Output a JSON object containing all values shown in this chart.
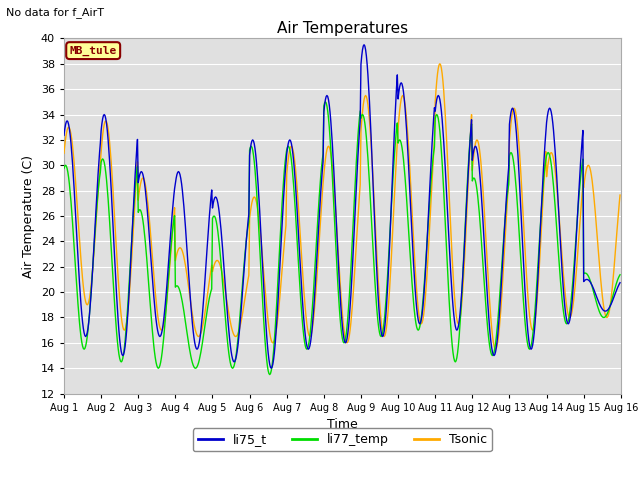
{
  "title": "Air Temperatures",
  "top_left_text": "No data for f_AirT",
  "xlabel": "Time",
  "ylabel": "Air Temperature (C)",
  "ylim": [
    12,
    40
  ],
  "yticks": [
    12,
    14,
    16,
    18,
    20,
    22,
    24,
    26,
    28,
    30,
    32,
    34,
    36,
    38,
    40
  ],
  "xtick_labels": [
    "Aug 1",
    "Aug 2",
    "Aug 3",
    "Aug 4",
    "Aug 5",
    "Aug 6",
    "Aug 7",
    "Aug 8",
    "Aug 9",
    "Aug 10",
    "Aug 11",
    "Aug 12",
    "Aug 13",
    "Aug 14",
    "Aug 15",
    "Aug 16"
  ],
  "line_colors": {
    "li75_t": "#0000cc",
    "li77_temp": "#00dd00",
    "Tsonic": "#ffaa00"
  },
  "line_widths": {
    "li75_t": 1.0,
    "li77_temp": 1.0,
    "Tsonic": 1.0
  },
  "background_color": "#e0e0e0",
  "mb_tule_label": "MB_tule",
  "mb_tule_bg": "#ffff99",
  "mb_tule_border": "#880000",
  "n_days": 15,
  "pts_per_day": 48,
  "daily_mins_blue": [
    16.5,
    15.0,
    16.5,
    15.5,
    14.5,
    14.0,
    15.5,
    16.0,
    16.5,
    17.5,
    17.0,
    15.0,
    15.5,
    17.5,
    18.5
  ],
  "daily_maxs_blue": [
    33.5,
    34.0,
    29.5,
    29.5,
    27.5,
    32.0,
    32.0,
    35.5,
    39.5,
    36.5,
    35.5,
    31.5,
    34.5,
    34.5,
    21.0
  ],
  "daily_mins_green": [
    15.5,
    14.5,
    14.0,
    14.0,
    14.0,
    13.5,
    15.5,
    16.0,
    16.5,
    17.0,
    14.5,
    15.0,
    15.5,
    17.5,
    18.0
  ],
  "daily_maxs_green": [
    30.0,
    30.5,
    26.5,
    20.5,
    26.0,
    31.5,
    31.5,
    35.0,
    34.0,
    32.0,
    34.0,
    29.0,
    31.0,
    31.0,
    21.5
  ],
  "daily_mins_orange": [
    19.0,
    17.0,
    17.0,
    16.5,
    16.5,
    16.0,
    16.5,
    16.0,
    16.5,
    17.5,
    17.5,
    15.5,
    17.0,
    18.0,
    18.0
  ],
  "daily_maxs_orange": [
    33.0,
    33.5,
    29.0,
    23.5,
    22.5,
    27.5,
    31.5,
    31.5,
    35.5,
    35.5,
    38.0,
    32.0,
    34.5,
    31.0,
    30.0
  ],
  "phase_peak_blue": 14,
  "phase_peak_green": 13,
  "phase_peak_orange": 15,
  "figsize": [
    6.4,
    4.8
  ],
  "dpi": 100
}
